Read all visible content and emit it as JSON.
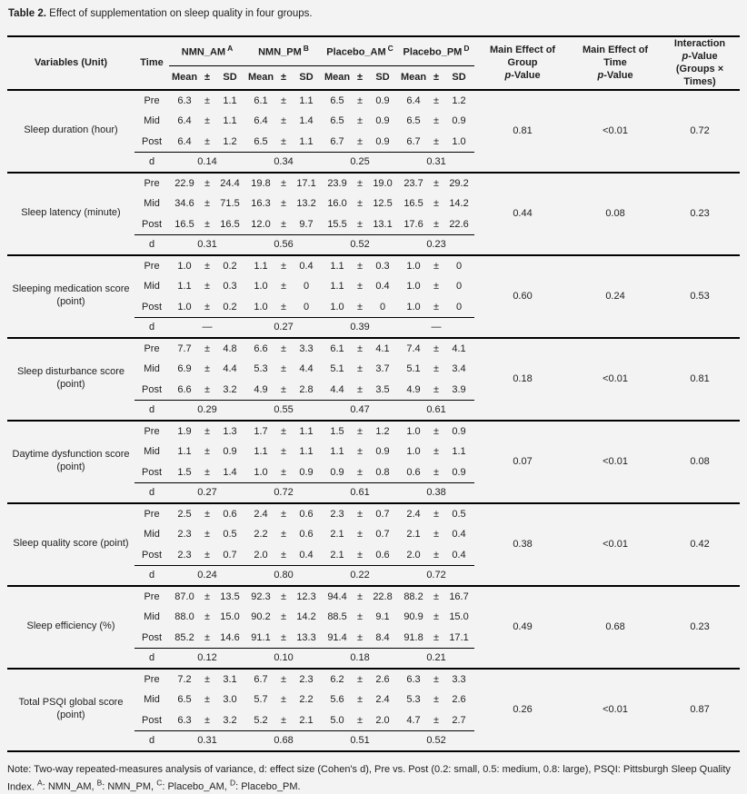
{
  "caption": {
    "label": "Table 2.",
    "text": " Effect of supplementation on sleep quality in four groups."
  },
  "table": {
    "header": {
      "variables": "Variables (Unit)",
      "time": "Time",
      "groups": [
        {
          "name": "NMN_AM",
          "sup": "A"
        },
        {
          "name": "NMN_PM",
          "sup": "B"
        },
        {
          "name": "Placebo_AM",
          "sup": "C"
        },
        {
          "name": "Placebo_PM",
          "sup": "D"
        }
      ],
      "mean": "Mean",
      "pm": "±",
      "sd": "SD",
      "p_italic": "p",
      "p_suffix": "-Value",
      "p_col_group": {
        "line1": "Main Effect of Group"
      },
      "p_col_time": {
        "line1": "Main Effect of Time"
      },
      "p_col_interaction": {
        "line1": "Interaction",
        "line3": "(Groups × Times)"
      }
    },
    "d_label": "d",
    "blocks": [
      {
        "variable": "Sleep duration (hour)",
        "rows": [
          {
            "time": "Pre",
            "values": [
              [
                "6.3",
                "1.1"
              ],
              [
                "6.1",
                "1.1"
              ],
              [
                "6.5",
                "0.9"
              ],
              [
                "6.4",
                "1.2"
              ]
            ]
          },
          {
            "time": "Mid",
            "values": [
              [
                "6.4",
                "1.1"
              ],
              [
                "6.4",
                "1.4"
              ],
              [
                "6.5",
                "0.9"
              ],
              [
                "6.5",
                "0.9"
              ]
            ]
          },
          {
            "time": "Post",
            "values": [
              [
                "6.4",
                "1.2"
              ],
              [
                "6.5",
                "1.1"
              ],
              [
                "6.7",
                "0.9"
              ],
              [
                "6.7",
                "1.0"
              ]
            ]
          }
        ],
        "d": [
          "0.14",
          "0.34",
          "0.25",
          "0.31"
        ],
        "p_group": "0.81",
        "p_time": "<0.01",
        "p_interaction": "0.72"
      },
      {
        "variable": "Sleep latency (minute)",
        "rows": [
          {
            "time": "Pre",
            "values": [
              [
                "22.9",
                "24.4"
              ],
              [
                "19.8",
                "17.1"
              ],
              [
                "23.9",
                "19.0"
              ],
              [
                "23.7",
                "29.2"
              ]
            ]
          },
          {
            "time": "Mid",
            "values": [
              [
                "34.6",
                "71.5"
              ],
              [
                "16.3",
                "13.2"
              ],
              [
                "16.0",
                "12.5"
              ],
              [
                "16.5",
                "14.2"
              ]
            ]
          },
          {
            "time": "Post",
            "values": [
              [
                "16.5",
                "16.5"
              ],
              [
                "12.0",
                "9.7"
              ],
              [
                "15.5",
                "13.1"
              ],
              [
                "17.6",
                "22.6"
              ]
            ]
          }
        ],
        "d": [
          "0.31",
          "0.56",
          "0.52",
          "0.23"
        ],
        "p_group": "0.44",
        "p_time": "0.08",
        "p_interaction": "0.23"
      },
      {
        "variable": "Sleeping medication score (point)",
        "rows": [
          {
            "time": "Pre",
            "values": [
              [
                "1.0",
                "0.2"
              ],
              [
                "1.1",
                "0.4"
              ],
              [
                "1.1",
                "0.3"
              ],
              [
                "1.0",
                "0"
              ]
            ]
          },
          {
            "time": "Mid",
            "values": [
              [
                "1.1",
                "0.3"
              ],
              [
                "1.0",
                "0"
              ],
              [
                "1.1",
                "0.4"
              ],
              [
                "1.0",
                "0"
              ]
            ]
          },
          {
            "time": "Post",
            "values": [
              [
                "1.0",
                "0.2"
              ],
              [
                "1.0",
                "0"
              ],
              [
                "1.0",
                "0"
              ],
              [
                "1.0",
                "0"
              ]
            ]
          }
        ],
        "d": [
          "—",
          "0.27",
          "0.39",
          "—"
        ],
        "p_group": "0.60",
        "p_time": "0.24",
        "p_interaction": "0.53"
      },
      {
        "variable": "Sleep disturbance score (point)",
        "rows": [
          {
            "time": "Pre",
            "values": [
              [
                "7.7",
                "4.8"
              ],
              [
                "6.6",
                "3.3"
              ],
              [
                "6.1",
                "4.1"
              ],
              [
                "7.4",
                "4.1"
              ]
            ]
          },
          {
            "time": "Mid",
            "values": [
              [
                "6.9",
                "4.4"
              ],
              [
                "5.3",
                "4.4"
              ],
              [
                "5.1",
                "3.7"
              ],
              [
                "5.1",
                "3.4"
              ]
            ]
          },
          {
            "time": "Post",
            "values": [
              [
                "6.6",
                "3.2"
              ],
              [
                "4.9",
                "2.8"
              ],
              [
                "4.4",
                "3.5"
              ],
              [
                "4.9",
                "3.9"
              ]
            ]
          }
        ],
        "d": [
          "0.29",
          "0.55",
          "0.47",
          "0.61"
        ],
        "p_group": "0.18",
        "p_time": "<0.01",
        "p_interaction": "0.81"
      },
      {
        "variable": "Daytime dysfunction score (point)",
        "rows": [
          {
            "time": "Pre",
            "values": [
              [
                "1.9",
                "1.3"
              ],
              [
                "1.7",
                "1.1"
              ],
              [
                "1.5",
                "1.2"
              ],
              [
                "1.0",
                "0.9"
              ]
            ]
          },
          {
            "time": "Mid",
            "values": [
              [
                "1.1",
                "0.9"
              ],
              [
                "1.1",
                "1.1"
              ],
              [
                "1.1",
                "0.9"
              ],
              [
                "1.0",
                "1.1"
              ]
            ]
          },
          {
            "time": "Post",
            "values": [
              [
                "1.5",
                "1.4"
              ],
              [
                "1.0",
                "0.9"
              ],
              [
                "0.9",
                "0.8"
              ],
              [
                "0.6",
                "0.9"
              ]
            ]
          }
        ],
        "d": [
          "0.27",
          "0.72",
          "0.61",
          "0.38"
        ],
        "p_group": "0.07",
        "p_time": "<0.01",
        "p_interaction": "0.08"
      },
      {
        "variable": "Sleep quality score (point)",
        "rows": [
          {
            "time": "Pre",
            "values": [
              [
                "2.5",
                "0.6"
              ],
              [
                "2.4",
                "0.6"
              ],
              [
                "2.3",
                "0.7"
              ],
              [
                "2.4",
                "0.5"
              ]
            ]
          },
          {
            "time": "Mid",
            "values": [
              [
                "2.3",
                "0.5"
              ],
              [
                "2.2",
                "0.6"
              ],
              [
                "2.1",
                "0.7"
              ],
              [
                "2.1",
                "0.4"
              ]
            ]
          },
          {
            "time": "Post",
            "values": [
              [
                "2.3",
                "0.7"
              ],
              [
                "2.0",
                "0.4"
              ],
              [
                "2.1",
                "0.6"
              ],
              [
                "2.0",
                "0.4"
              ]
            ]
          }
        ],
        "d": [
          "0.24",
          "0.80",
          "0.22",
          "0.72"
        ],
        "p_group": "0.38",
        "p_time": "<0.01",
        "p_interaction": "0.42"
      },
      {
        "variable": "Sleep efficiency (%)",
        "rows": [
          {
            "time": "Pre",
            "values": [
              [
                "87.0",
                "13.5"
              ],
              [
                "92.3",
                "12.3"
              ],
              [
                "94.4",
                "22.8"
              ],
              [
                "88.2",
                "16.7"
              ]
            ]
          },
          {
            "time": "Mid",
            "values": [
              [
                "88.0",
                "15.0"
              ],
              [
                "90.2",
                "14.2"
              ],
              [
                "88.5",
                "9.1"
              ],
              [
                "90.9",
                "15.0"
              ]
            ]
          },
          {
            "time": "Post",
            "values": [
              [
                "85.2",
                "14.6"
              ],
              [
                "91.1",
                "13.3"
              ],
              [
                "91.4",
                "8.4"
              ],
              [
                "91.8",
                "17.1"
              ]
            ]
          }
        ],
        "d": [
          "0.12",
          "0.10",
          "0.18",
          "0.21"
        ],
        "p_group": "0.49",
        "p_time": "0.68",
        "p_interaction": "0.23"
      },
      {
        "variable": "Total PSQI global score (point)",
        "rows": [
          {
            "time": "Pre",
            "values": [
              [
                "7.2",
                "3.1"
              ],
              [
                "6.7",
                "2.3"
              ],
              [
                "6.2",
                "2.6"
              ],
              [
                "6.3",
                "3.3"
              ]
            ]
          },
          {
            "time": "Mid",
            "values": [
              [
                "6.5",
                "3.0"
              ],
              [
                "5.7",
                "2.2"
              ],
              [
                "5.6",
                "2.4"
              ],
              [
                "5.3",
                "2.6"
              ]
            ]
          },
          {
            "time": "Post",
            "values": [
              [
                "6.3",
                "3.2"
              ],
              [
                "5.2",
                "2.1"
              ],
              [
                "5.0",
                "2.0"
              ],
              [
                "4.7",
                "2.7"
              ]
            ]
          }
        ],
        "d": [
          "0.31",
          "0.68",
          "0.51",
          "0.52"
        ],
        "p_group": "0.26",
        "p_time": "<0.01",
        "p_interaction": "0.87"
      }
    ]
  },
  "footnote": {
    "main": "Note: Two-way repeated-measures analysis of variance, d: effect size (Cohen's d), Pre vs. Post (0.2: small, 0.5: medium, 0.8: large), PSQI: Pittsburgh Sleep Quality Index.",
    "groups": [
      {
        "sup": "A",
        "text": ": NMN_AM,"
      },
      {
        "sup": "B",
        "text": ": NMN_PM,"
      },
      {
        "sup": "C",
        "text": ": Placebo_AM,"
      },
      {
        "sup": "D",
        "text": ": Placebo_PM."
      }
    ]
  }
}
